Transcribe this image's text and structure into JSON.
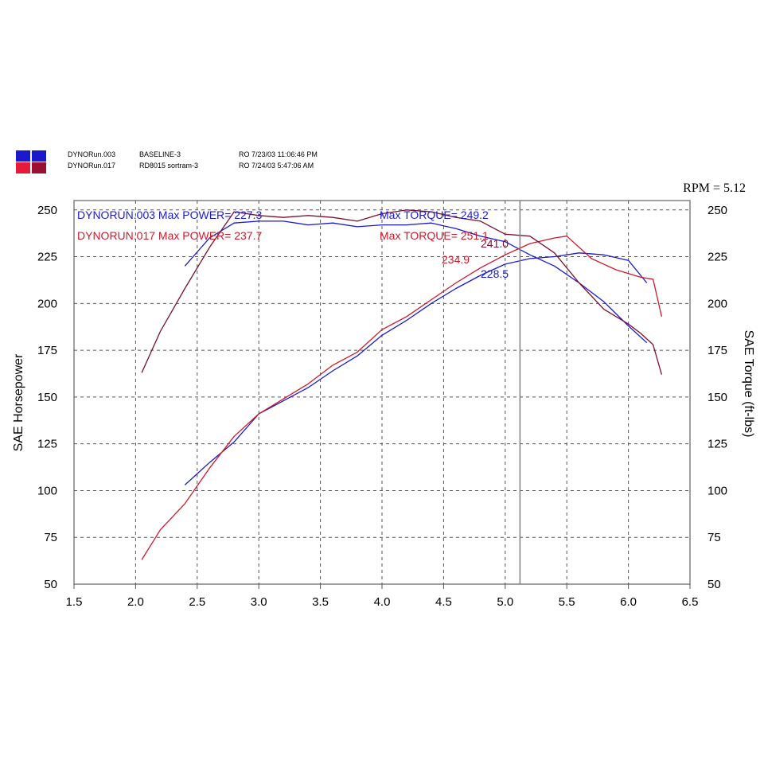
{
  "legend": [
    {
      "run": "DYNORun.003",
      "description": "BASELINE-3",
      "info": "RO 7/23/03 11:06:46 PM",
      "color": "#1a1acc"
    },
    {
      "run": "DYNORun.017",
      "description": "RD8015 sortram-3",
      "info": "RO 7/24/03 5:47:06 AM",
      "color": "#cc1a2a"
    }
  ],
  "rpm_readout": "RPM = 5.12",
  "chart_data": {
    "type": "line",
    "xlabel": "",
    "ylabel": "SAE Horsepower",
    "y2label": "SAE Torque (ft-lbs)",
    "xlim": [
      1.5,
      6.5
    ],
    "ylim": [
      50,
      255
    ],
    "y2lim": [
      50,
      255
    ],
    "xticks": [
      "1.5",
      "2.0",
      "2.5",
      "3.0",
      "3.5",
      "4.0",
      "4.5",
      "5.0",
      "5.5",
      "6.0",
      "6.5"
    ],
    "yticks": [
      "50",
      "75",
      "100",
      "125",
      "150",
      "175",
      "200",
      "225",
      "250"
    ],
    "grid": true,
    "cursor_x": 5.12,
    "annotations": [
      {
        "text": "DYNORUN.003  Max POWER= 227.3",
        "color": "#1a1acc"
      },
      {
        "text": "Max TORQUE= 249.2",
        "color": "#1a1acc"
      },
      {
        "text": "DYNORUN.017  Max POWER= 237.7",
        "color": "#cc1a2a"
      },
      {
        "text": "Max TORQUE= 251.1",
        "color": "#cc1a2a"
      },
      {
        "text": "241.0",
        "color": "#7a1030"
      },
      {
        "text": "234.9",
        "color": "#cc1a2a"
      },
      {
        "text": "228.5",
        "color": "#1a1acc"
      }
    ],
    "series": [
      {
        "name": "DYNORUN.003 Power",
        "color": "#1a1acc",
        "x": [
          2.4,
          2.6,
          2.8,
          3.0,
          3.2,
          3.4,
          3.6,
          3.8,
          4.0,
          4.2,
          4.4,
          4.6,
          4.8,
          5.0,
          5.2,
          5.4,
          5.6,
          5.8,
          6.0,
          6.15
        ],
        "y": [
          103,
          115,
          126,
          141,
          148,
          155,
          164,
          172,
          183,
          191,
          200,
          208,
          215,
          221,
          224,
          225,
          227,
          226,
          223,
          211
        ]
      },
      {
        "name": "DYNORUN.003 Torque",
        "color": "#1a1acc",
        "x": [
          2.4,
          2.6,
          2.8,
          3.0,
          3.2,
          3.4,
          3.6,
          3.8,
          4.0,
          4.2,
          4.4,
          4.6,
          4.8,
          5.0,
          5.2,
          5.4,
          5.6,
          5.8,
          6.0,
          6.15
        ],
        "y": [
          220,
          235,
          243,
          244,
          244,
          242,
          243,
          241,
          242,
          242,
          243,
          240,
          236,
          233,
          226,
          220,
          211,
          201,
          188,
          179
        ]
      },
      {
        "name": "DYNORUN.017 Power",
        "color": "#cc1a2a",
        "x": [
          2.05,
          2.2,
          2.4,
          2.6,
          2.8,
          3.0,
          3.2,
          3.4,
          3.6,
          3.8,
          4.0,
          4.2,
          4.4,
          4.6,
          4.8,
          5.0,
          5.2,
          5.4,
          5.5,
          5.7,
          5.9,
          6.1,
          6.2,
          6.27
        ],
        "y": [
          63,
          79,
          93,
          112,
          129,
          141,
          149,
          157,
          167,
          174,
          186,
          193,
          202,
          211,
          219,
          226,
          232,
          235,
          236,
          224,
          218,
          214,
          213,
          193
        ]
      },
      {
        "name": "DYNORUN.017 Torque",
        "color": "#7a1030",
        "x": [
          2.05,
          2.2,
          2.4,
          2.6,
          2.8,
          3.0,
          3.2,
          3.4,
          3.6,
          3.8,
          4.0,
          4.2,
          4.4,
          4.6,
          4.8,
          5.0,
          5.2,
          5.4,
          5.6,
          5.8,
          6.0,
          6.1,
          6.2,
          6.27
        ],
        "y": [
          163,
          185,
          208,
          230,
          249,
          247,
          246,
          247,
          246,
          244,
          248,
          250,
          249,
          246,
          244,
          237,
          236,
          227,
          211,
          197,
          189,
          184,
          178,
          162
        ]
      }
    ]
  }
}
